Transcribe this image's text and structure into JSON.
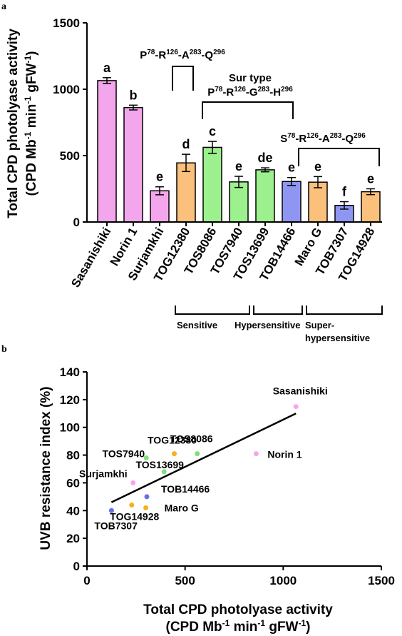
{
  "panels": {
    "a": "a",
    "b": "b"
  },
  "chart_data": [
    {
      "type": "bar",
      "panel": "a",
      "ylabel_line1": "Total CPD photolyase activity",
      "ylabel_line2": "(CPD Mb-1 min-1 gFW-1)",
      "ylim": [
        0,
        1500
      ],
      "yticks": [
        0,
        500,
        1000,
        1500
      ],
      "categories": [
        "Sasanishiki",
        "Norin 1",
        "Surjamkhi",
        "TOG12380",
        "TOS8086",
        "TOS7940",
        "TOS13699",
        "TOB14466",
        "Maro G",
        "TOB7307",
        "TOG14928"
      ],
      "values": [
        1065,
        862,
        235,
        445,
        562,
        302,
        393,
        305,
        300,
        125,
        228
      ],
      "errors": [
        22,
        18,
        30,
        65,
        45,
        42,
        15,
        30,
        42,
        28,
        22
      ],
      "letters": [
        "a",
        "b",
        "e",
        "d",
        "c",
        "e",
        "de",
        "e",
        "e",
        "f",
        "e"
      ],
      "colors": [
        "#f4a6ec",
        "#f4a6ec",
        "#f4a6ec",
        "#fbc07c",
        "#9cf08e",
        "#9cf08e",
        "#9cf08e",
        "#8f96f2",
        "#fbc07c",
        "#8f96f2",
        "#fbc07c"
      ],
      "annotations": {
        "type1": "P78-R126-A283-Q296",
        "surtype_title": "Sur type",
        "surtype": "P78-R126-G283-H296",
        "type3": "S78-R126-A283-Q296"
      },
      "groups": {
        "sensitive": "Sensitive",
        "hypersensitive": "Hypersensitive",
        "superhyper_line1": "Super-",
        "superhyper_line2": "hypersensitive"
      }
    },
    {
      "type": "scatter",
      "panel": "b",
      "xlabel_line1": "Total CPD photolyase activity",
      "xlabel_line2": "(CPD Mb-1 min-1 gFW-1)",
      "ylabel": "UVB resistance index (%)",
      "xlim": [
        0,
        1500
      ],
      "ylim": [
        0,
        140
      ],
      "xticks": [
        0,
        500,
        1000,
        1500
      ],
      "yticks": [
        0,
        20,
        40,
        60,
        80,
        100,
        120,
        140
      ],
      "points": [
        {
          "label": "Sasanishiki",
          "x": 1065,
          "y": 115,
          "color": "#f4a6ec"
        },
        {
          "label": "Norin 1",
          "x": 862,
          "y": 81,
          "color": "#f4a6ec"
        },
        {
          "label": "Surjamkhi",
          "x": 235,
          "y": 60,
          "color": "#f4a6ec"
        },
        {
          "label": "TOG12380",
          "x": 445,
          "y": 81,
          "color": "#f5b020"
        },
        {
          "label": "TOS8086",
          "x": 562,
          "y": 81,
          "color": "#7ee07a"
        },
        {
          "label": "TOS7940",
          "x": 302,
          "y": 78,
          "color": "#7ee07a"
        },
        {
          "label": "TOS13699",
          "x": 393,
          "y": 68,
          "color": "#7ee07a"
        },
        {
          "label": "TOB14466",
          "x": 305,
          "y": 50,
          "color": "#6670e8"
        },
        {
          "label": "Maro G",
          "x": 300,
          "y": 42,
          "color": "#f5b020"
        },
        {
          "label": "TOB7307",
          "x": 125,
          "y": 40,
          "color": "#6670e8"
        },
        {
          "label": "TOG14928",
          "x": 228,
          "y": 44,
          "color": "#f5b020"
        }
      ],
      "trendline": {
        "x": [
          125,
          1065
        ],
        "y": [
          46,
          110
        ]
      }
    }
  ]
}
